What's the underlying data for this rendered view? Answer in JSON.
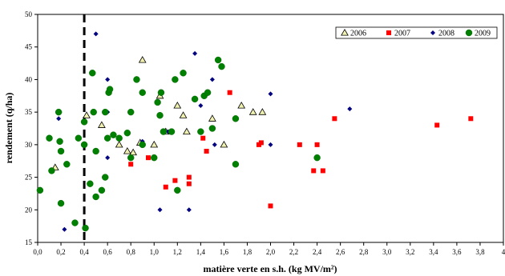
{
  "chart_data": {
    "type": "scatter",
    "xlabel": "matière verte en s.h. (kg MV/m²)",
    "ylabel": "rendement (q/ha)",
    "xlim": [
      0,
      4
    ],
    "ylim": [
      15,
      50
    ],
    "x_ticks": [
      "0,0",
      "0,2",
      "0,4",
      "0,6",
      "0,8",
      "1,0",
      "1,2",
      "1,4",
      "1,6",
      "1,8",
      "2,0",
      "2,2",
      "2,4",
      "2,6",
      "2,8",
      "3,0",
      "3,2",
      "3,4",
      "3,6",
      "3,8",
      "4"
    ],
    "x_tick_values": [
      0,
      0.2,
      0.4,
      0.6,
      0.8,
      1.0,
      1.2,
      1.4,
      1.6,
      1.8,
      2.0,
      2.2,
      2.4,
      2.6,
      2.8,
      3.0,
      3.2,
      3.4,
      3.6,
      3.8,
      4.0
    ],
    "y_ticks": [
      "15",
      "20",
      "25",
      "30",
      "35",
      "40",
      "45",
      "50"
    ],
    "y_tick_values": [
      15,
      20,
      25,
      30,
      35,
      40,
      45,
      50
    ],
    "reference_line_x": 0.4,
    "grid": false,
    "legend_position": "top-right",
    "series": [
      {
        "name": "2006",
        "marker": "triangle",
        "color": "#f0f0b0",
        "stroke": "#000000",
        "points": [
          [
            0.15,
            26.5
          ],
          [
            0.42,
            34.5
          ],
          [
            0.55,
            33.0
          ],
          [
            0.7,
            30.0
          ],
          [
            0.77,
            29.0
          ],
          [
            0.82,
            28.8
          ],
          [
            0.88,
            30.3
          ],
          [
            0.9,
            43.0
          ],
          [
            1.0,
            30.0
          ],
          [
            1.05,
            37.5
          ],
          [
            1.1,
            32.0
          ],
          [
            1.2,
            36.0
          ],
          [
            1.25,
            34.5
          ],
          [
            1.28,
            32.0
          ],
          [
            1.5,
            34.0
          ],
          [
            1.6,
            30.0
          ],
          [
            1.75,
            36.0
          ],
          [
            1.85,
            35.0
          ],
          [
            1.93,
            35.0
          ]
        ]
      },
      {
        "name": "2007",
        "marker": "square",
        "color": "#ff0000",
        "stroke": "#ff0000",
        "points": [
          [
            0.8,
            27.0
          ],
          [
            0.95,
            28.0
          ],
          [
            1.1,
            23.5
          ],
          [
            1.18,
            24.5
          ],
          [
            1.3,
            25.0
          ],
          [
            1.3,
            24.0
          ],
          [
            1.42,
            31.0
          ],
          [
            1.45,
            29.0
          ],
          [
            1.65,
            38.0
          ],
          [
            1.9,
            30.0
          ],
          [
            1.92,
            30.3
          ],
          [
            2.0,
            20.6
          ],
          [
            2.25,
            30.0
          ],
          [
            2.37,
            26.0
          ],
          [
            2.4,
            30.0
          ],
          [
            2.45,
            26.0
          ],
          [
            2.55,
            34.0
          ],
          [
            3.43,
            33.0
          ],
          [
            3.72,
            34.0
          ]
        ]
      },
      {
        "name": "2008",
        "marker": "diamond",
        "color": "#000080",
        "stroke": "#000080",
        "points": [
          [
            0.18,
            34.0
          ],
          [
            0.23,
            17.0
          ],
          [
            0.5,
            47.0
          ],
          [
            0.6,
            40.0
          ],
          [
            0.6,
            35.0
          ],
          [
            0.6,
            28.0
          ],
          [
            0.9,
            30.5
          ],
          [
            1.05,
            20.0
          ],
          [
            1.12,
            32.0
          ],
          [
            1.3,
            20.0
          ],
          [
            1.35,
            44.0
          ],
          [
            1.4,
            36.0
          ],
          [
            1.5,
            40.0
          ],
          [
            1.52,
            30.0
          ],
          [
            2.0,
            37.8
          ],
          [
            2.0,
            30.0
          ],
          [
            2.68,
            35.5
          ]
        ]
      },
      {
        "name": "2009",
        "marker": "circle",
        "color": "#008000",
        "stroke": "#006000",
        "points": [
          [
            0.02,
            23.0
          ],
          [
            0.1,
            31.0
          ],
          [
            0.12,
            26.0
          ],
          [
            0.18,
            35.0
          ],
          [
            0.19,
            30.5
          ],
          [
            0.2,
            21.0
          ],
          [
            0.2,
            29.0
          ],
          [
            0.25,
            27.0
          ],
          [
            0.32,
            18.0
          ],
          [
            0.35,
            31.0
          ],
          [
            0.4,
            33.5
          ],
          [
            0.4,
            30.0
          ],
          [
            0.41,
            17.2
          ],
          [
            0.45,
            24.0
          ],
          [
            0.47,
            41.0
          ],
          [
            0.48,
            35.0
          ],
          [
            0.5,
            29.0
          ],
          [
            0.5,
            22.0
          ],
          [
            0.55,
            23.0
          ],
          [
            0.58,
            25.0
          ],
          [
            0.58,
            35.0
          ],
          [
            0.6,
            31.0
          ],
          [
            0.61,
            38.0
          ],
          [
            0.62,
            38.5
          ],
          [
            0.65,
            31.5
          ],
          [
            0.7,
            31.0
          ],
          [
            0.77,
            31.8
          ],
          [
            0.8,
            35.0
          ],
          [
            0.8,
            28.0
          ],
          [
            0.85,
            40.0
          ],
          [
            0.9,
            38.0
          ],
          [
            0.9,
            30.0
          ],
          [
            1.0,
            28.0
          ],
          [
            1.03,
            36.5
          ],
          [
            1.05,
            34.5
          ],
          [
            1.06,
            38.0
          ],
          [
            1.08,
            32.0
          ],
          [
            1.15,
            32.0
          ],
          [
            1.18,
            40.0
          ],
          [
            1.2,
            23.0
          ],
          [
            1.25,
            41.0
          ],
          [
            1.35,
            37.0
          ],
          [
            1.4,
            32.0
          ],
          [
            1.43,
            37.5
          ],
          [
            1.46,
            38.0
          ],
          [
            1.5,
            32.5
          ],
          [
            1.55,
            43.0
          ],
          [
            1.58,
            42.0
          ],
          [
            1.7,
            34.0
          ],
          [
            1.7,
            27.0
          ],
          [
            2.4,
            28.0
          ]
        ]
      }
    ]
  }
}
